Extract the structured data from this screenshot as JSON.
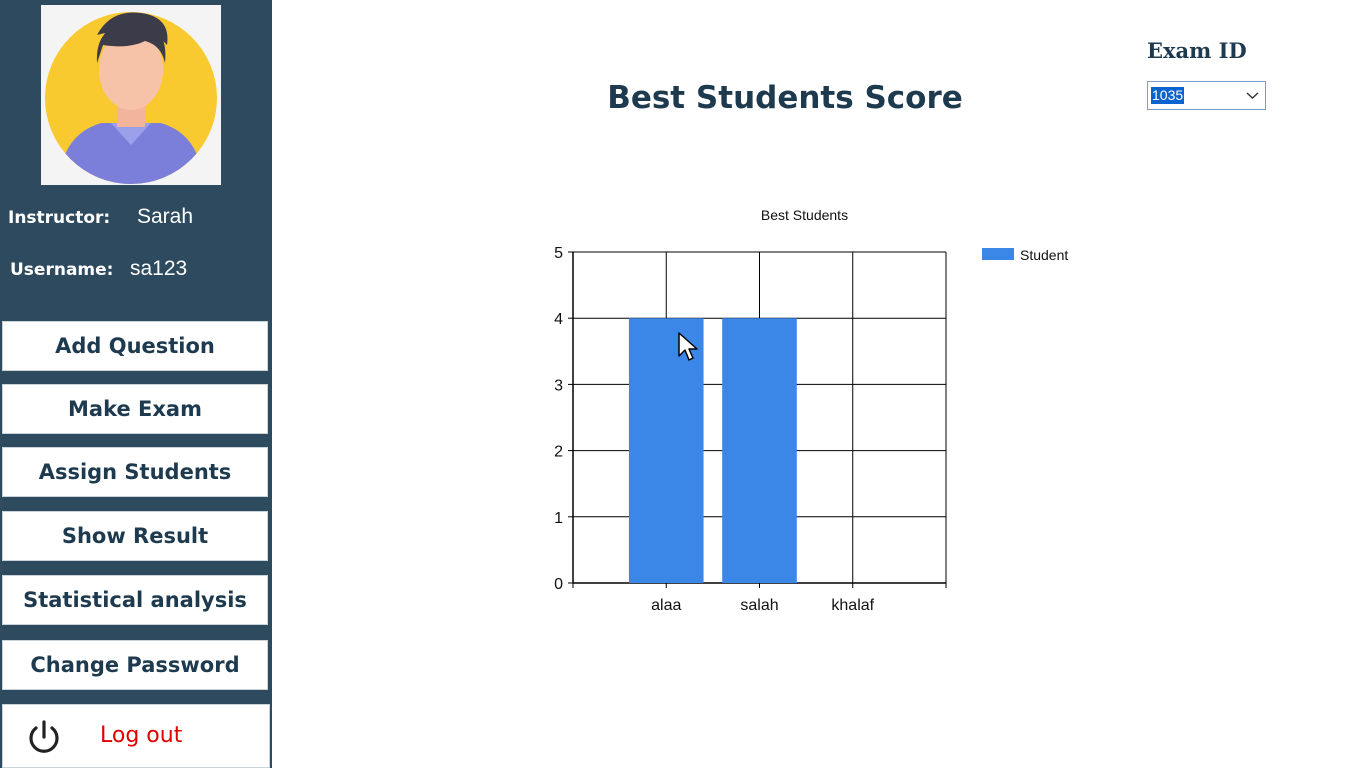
{
  "sidebar": {
    "instructor_label": "Instructor:",
    "instructor_name": "Sarah",
    "username_label": "Username:",
    "username": "sa123",
    "buttons": [
      {
        "label": "Add Question"
      },
      {
        "label": "Make Exam"
      },
      {
        "label": "Assign Students"
      },
      {
        "label": "Show Result"
      },
      {
        "label": "Statistical analysis"
      },
      {
        "label": "Change Password"
      }
    ],
    "logout_label": "Log out",
    "logout_icon": "power-icon"
  },
  "main": {
    "title": "Best Students Score",
    "exam_id_label": "Exam ID",
    "exam_id_value": "1035"
  },
  "colors": {
    "sidebar_bg": "#2d4a5f",
    "title_text": "#1e3a4f",
    "bar": "#3b87e8",
    "logout_text": "#e00000"
  },
  "chart_data": {
    "type": "bar",
    "title": "Best Students",
    "categories": [
      "alaa",
      "salah",
      "khalaf"
    ],
    "series": [
      {
        "name": "Student",
        "values": [
          4,
          4,
          0
        ]
      }
    ],
    "xlabel": "",
    "ylabel": "",
    "ylim": [
      0,
      5
    ],
    "yticks": [
      0,
      1,
      2,
      3,
      4,
      5
    ],
    "grid": true,
    "legend": "top-right"
  }
}
